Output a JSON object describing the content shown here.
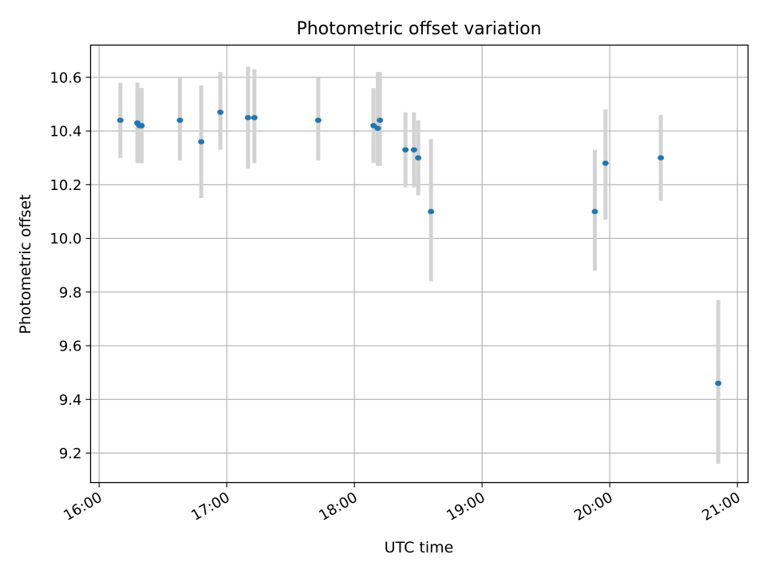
{
  "chart_data": {
    "type": "scatter",
    "title": "Photometric offset variation",
    "xlabel": "UTC time",
    "ylabel": "Photometric offset",
    "x_tick_labels": [
      "16:00",
      "17:00",
      "18:00",
      "19:00",
      "20:00",
      "21:00"
    ],
    "y_tick_labels": [
      "9.2",
      "9.4",
      "9.6",
      "9.8",
      "10.0",
      "10.2",
      "10.4",
      "10.6"
    ],
    "xlim": [
      "15:56",
      "21:05"
    ],
    "ylim": [
      9.09,
      10.72
    ],
    "grid": true,
    "points": [
      {
        "x": "16:10",
        "y": 10.44,
        "err_low": 10.3,
        "err_high": 10.58
      },
      {
        "x": "16:18",
        "y": 10.43,
        "err_low": 10.28,
        "err_high": 10.58
      },
      {
        "x": "16:19",
        "y": 10.42,
        "err_low": 10.28,
        "err_high": 10.56
      },
      {
        "x": "16:20",
        "y": 10.42,
        "err_low": 10.28,
        "err_high": 10.56
      },
      {
        "x": "16:38",
        "y": 10.44,
        "err_low": 10.29,
        "err_high": 10.6
      },
      {
        "x": "16:48",
        "y": 10.36,
        "err_low": 10.15,
        "err_high": 10.57
      },
      {
        "x": "16:57",
        "y": 10.47,
        "err_low": 10.33,
        "err_high": 10.62
      },
      {
        "x": "17:10",
        "y": 10.45,
        "err_low": 10.26,
        "err_high": 10.64
      },
      {
        "x": "17:13",
        "y": 10.45,
        "err_low": 10.28,
        "err_high": 10.63
      },
      {
        "x": "17:43",
        "y": 10.44,
        "err_low": 10.29,
        "err_high": 10.6
      },
      {
        "x": "18:09",
        "y": 10.42,
        "err_low": 10.28,
        "err_high": 10.56
      },
      {
        "x": "18:11",
        "y": 10.41,
        "err_low": 10.27,
        "err_high": 10.62
      },
      {
        "x": "18:12",
        "y": 10.44,
        "err_low": 10.27,
        "err_high": 10.62
      },
      {
        "x": "18:24",
        "y": 10.33,
        "err_low": 10.19,
        "err_high": 10.47
      },
      {
        "x": "18:28",
        "y": 10.33,
        "err_low": 10.19,
        "err_high": 10.47
      },
      {
        "x": "18:30",
        "y": 10.3,
        "err_low": 10.16,
        "err_high": 10.44
      },
      {
        "x": "18:36",
        "y": 10.1,
        "err_low": 9.84,
        "err_high": 10.37
      },
      {
        "x": "19:53",
        "y": 10.1,
        "err_low": 9.88,
        "err_high": 10.33
      },
      {
        "x": "19:58",
        "y": 10.28,
        "err_low": 10.07,
        "err_high": 10.48
      },
      {
        "x": "20:24",
        "y": 10.3,
        "err_low": 10.14,
        "err_high": 10.46
      },
      {
        "x": "20:51",
        "y": 9.46,
        "err_low": 9.16,
        "err_high": 9.77
      }
    ],
    "colors": {
      "marker": "#1f77b4",
      "errorbar": "#d3d3d3",
      "grid": "#b0b0b0",
      "axes": "#000000"
    }
  }
}
